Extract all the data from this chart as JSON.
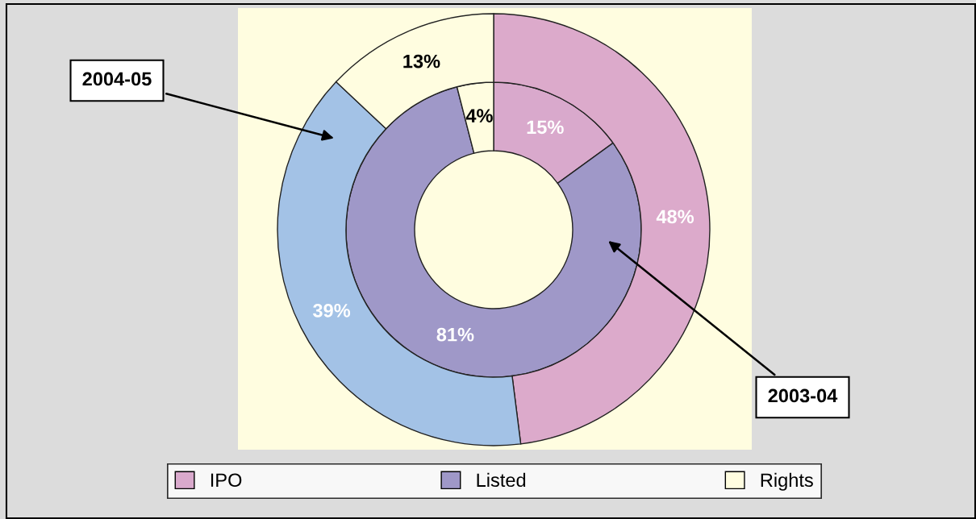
{
  "chart_data": {
    "type": "donut",
    "categories": [
      "IPO",
      "Listed",
      "Rights"
    ],
    "series": [
      {
        "name": "2003-04",
        "values": [
          15,
          81,
          4
        ],
        "value_labels": [
          "15%",
          "81%",
          "4%"
        ],
        "colors": [
          "#d9a9cc",
          "#9f98c8",
          "#fffde0"
        ]
      },
      {
        "name": "2004-05",
        "values": [
          48,
          39,
          13
        ],
        "value_labels": [
          "48%",
          "39%",
          "13%"
        ],
        "colors": [
          "#dcaacb",
          "#a3c2e6",
          "#fffde0"
        ]
      }
    ],
    "legend": "bottom"
  }
}
